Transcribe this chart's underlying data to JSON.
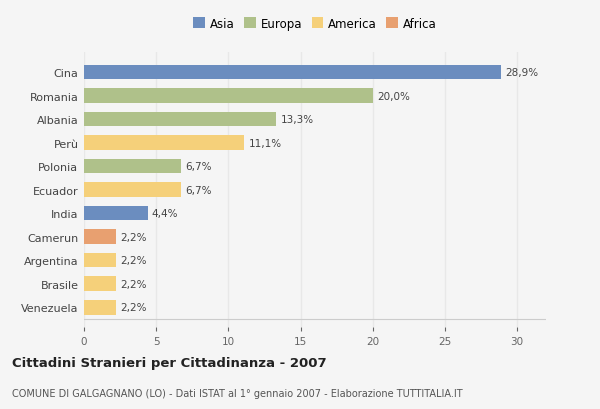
{
  "countries": [
    "Cina",
    "Romania",
    "Albania",
    "Perù",
    "Polonia",
    "Ecuador",
    "India",
    "Camerun",
    "Argentina",
    "Brasile",
    "Venezuela"
  ],
  "values": [
    28.9,
    20.0,
    13.3,
    11.1,
    6.7,
    6.7,
    4.4,
    2.2,
    2.2,
    2.2,
    2.2
  ],
  "labels": [
    "28,9%",
    "20,0%",
    "13,3%",
    "11,1%",
    "6,7%",
    "6,7%",
    "4,4%",
    "2,2%",
    "2,2%",
    "2,2%",
    "2,2%"
  ],
  "colors": [
    "#6b8dbf",
    "#afc18a",
    "#afc18a",
    "#f5d07a",
    "#afc18a",
    "#f5d07a",
    "#6b8dbf",
    "#e8a070",
    "#f5d07a",
    "#f5d07a",
    "#f5d07a"
  ],
  "legend_labels": [
    "Asia",
    "Europa",
    "America",
    "Africa"
  ],
  "legend_colors": [
    "#6b8dbf",
    "#afc18a",
    "#f5d07a",
    "#e8a070"
  ],
  "title": "Cittadini Stranieri per Cittadinanza - 2007",
  "subtitle": "COMUNE DI GALGAGNANO (LO) - Dati ISTAT al 1° gennaio 2007 - Elaborazione TUTTITALIA.IT",
  "xlim": [
    0,
    32
  ],
  "xticks": [
    0,
    5,
    10,
    15,
    20,
    25,
    30
  ],
  "background_color": "#f5f5f5",
  "plot_bg_color": "#f5f5f5",
  "grid_color": "#e8e8e8",
  "bar_height": 0.62,
  "label_fontsize": 7.5,
  "ytick_fontsize": 8,
  "xtick_fontsize": 7.5
}
